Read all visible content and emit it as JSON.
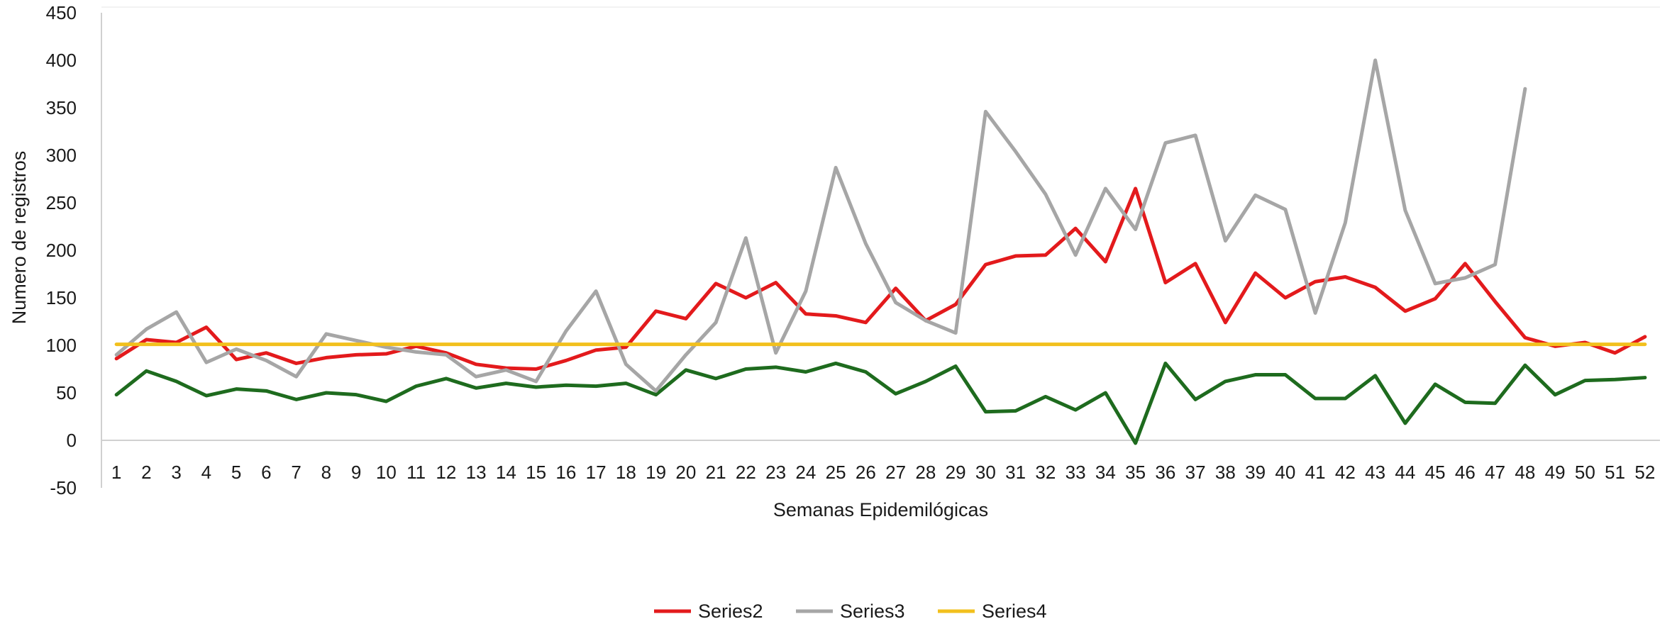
{
  "chart_data": {
    "type": "line",
    "xlabel": "Semanas Epidemilógicas",
    "ylabel": "Numero de registros",
    "ylim": [
      -50,
      450
    ],
    "yticks": [
      450,
      400,
      350,
      300,
      250,
      200,
      150,
      100,
      50,
      0,
      -50
    ],
    "categories": [
      "1",
      "2",
      "3",
      "4",
      "5",
      "6",
      "7",
      "8",
      "9",
      "10",
      "11",
      "12",
      "13",
      "14",
      "15",
      "16",
      "17",
      "18",
      "19",
      "20",
      "21",
      "22",
      "23",
      "24",
      "25",
      "26",
      "27",
      "28",
      "29",
      "30",
      "31",
      "32",
      "33",
      "34",
      "35",
      "36",
      "37",
      "38",
      "39",
      "40",
      "41",
      "42",
      "43",
      "44",
      "45",
      "46",
      "47",
      "48",
      "49",
      "50",
      "51",
      "52"
    ],
    "legend_position": "bottom",
    "series": [
      {
        "name": "Series2",
        "color": "#e31a1c",
        "values": [
          86,
          106,
          103,
          119,
          85,
          92,
          81,
          87,
          90,
          91,
          99,
          92,
          80,
          76,
          75,
          84,
          95,
          98,
          136,
          128,
          165,
          150,
          166,
          133,
          131,
          124,
          160,
          126,
          143,
          185,
          194,
          195,
          223,
          188,
          265,
          166,
          186,
          124,
          176,
          150,
          167,
          172,
          161,
          136,
          149,
          186,
          146,
          108,
          99,
          103,
          92,
          109
        ]
      },
      {
        "name": "Series3",
        "color": "#a6a6a6",
        "values": [
          90,
          117,
          135,
          82,
          96,
          84,
          67,
          112,
          105,
          98,
          93,
          90,
          67,
          74,
          62,
          115,
          157,
          80,
          52,
          90,
          124,
          213,
          92,
          157,
          287,
          207,
          145,
          126,
          113,
          346,
          304,
          259,
          195,
          265,
          222,
          313,
          321,
          210,
          258,
          243,
          134,
          229,
          400,
          242,
          165,
          171,
          185,
          370,
          null,
          null,
          null,
          null
        ]
      },
      {
        "name": "Series4",
        "color": "#f2c01d",
        "values": [
          101,
          101,
          101,
          101,
          101,
          101,
          101,
          101,
          101,
          101,
          101,
          101,
          101,
          101,
          101,
          101,
          101,
          101,
          101,
          101,
          101,
          101,
          101,
          101,
          101,
          101,
          101,
          101,
          101,
          101,
          101,
          101,
          101,
          101,
          101,
          101,
          101,
          101,
          101,
          101,
          101,
          101,
          101,
          101,
          101,
          101,
          101,
          101,
          101,
          101,
          101,
          101
        ]
      },
      {
        "color": "#1e6b1e",
        "values": [
          48,
          73,
          62,
          47,
          54,
          52,
          43,
          50,
          48,
          41,
          57,
          65,
          55,
          60,
          56,
          58,
          57,
          60,
          48,
          74,
          65,
          75,
          77,
          72,
          81,
          72,
          49,
          62,
          78,
          30,
          31,
          46,
          32,
          50,
          -3,
          81,
          43,
          62,
          69,
          69,
          44,
          44,
          68,
          18,
          59,
          40,
          39,
          79,
          48,
          63,
          64,
          66
        ]
      }
    ]
  }
}
